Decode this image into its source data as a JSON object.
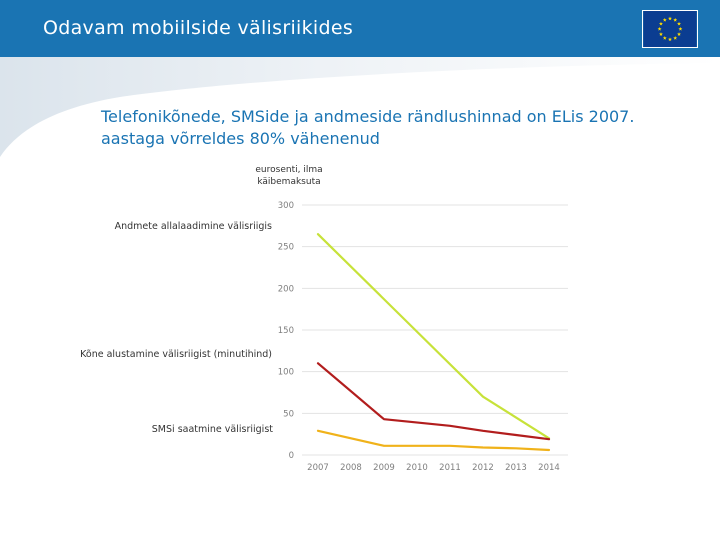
{
  "header": {
    "title": "Odavam mobiilside välisriikides"
  },
  "headline": "Telefonikõnede, SMSide ja andmeside rändlushinnad on ELis 2007. aastaga võrreldes 80% vähenenud",
  "colors": {
    "header": "#1a74b3",
    "flag": "#0b3d91",
    "stars": "#ffdd00"
  },
  "chart_data": {
    "type": "line",
    "unit_label": [
      "eurosenti, ilma",
      "käibemaksuta"
    ],
    "x": [
      2007,
      2008,
      2009,
      2010,
      2011,
      2012,
      2013,
      2014
    ],
    "ylim": [
      0,
      300
    ],
    "yticks": [
      0,
      50,
      100,
      150,
      200,
      250,
      300
    ],
    "grid": true,
    "series": [
      {
        "name": "Andmete allalaadimine välisriigis",
        "color": "#c7e23a",
        "values": [
          265,
          null,
          null,
          null,
          null,
          70,
          null,
          20
        ]
      },
      {
        "name": "Kõne alustamine välisriigist (minutihind)",
        "color": "#b21d1d",
        "values": [
          110,
          null,
          43,
          null,
          35,
          29,
          24,
          19
        ]
      },
      {
        "name": "SMSi saatmine välisriigist",
        "color": "#f0b21a",
        "values": [
          29,
          null,
          11,
          11,
          11,
          9,
          8,
          6
        ]
      }
    ]
  }
}
